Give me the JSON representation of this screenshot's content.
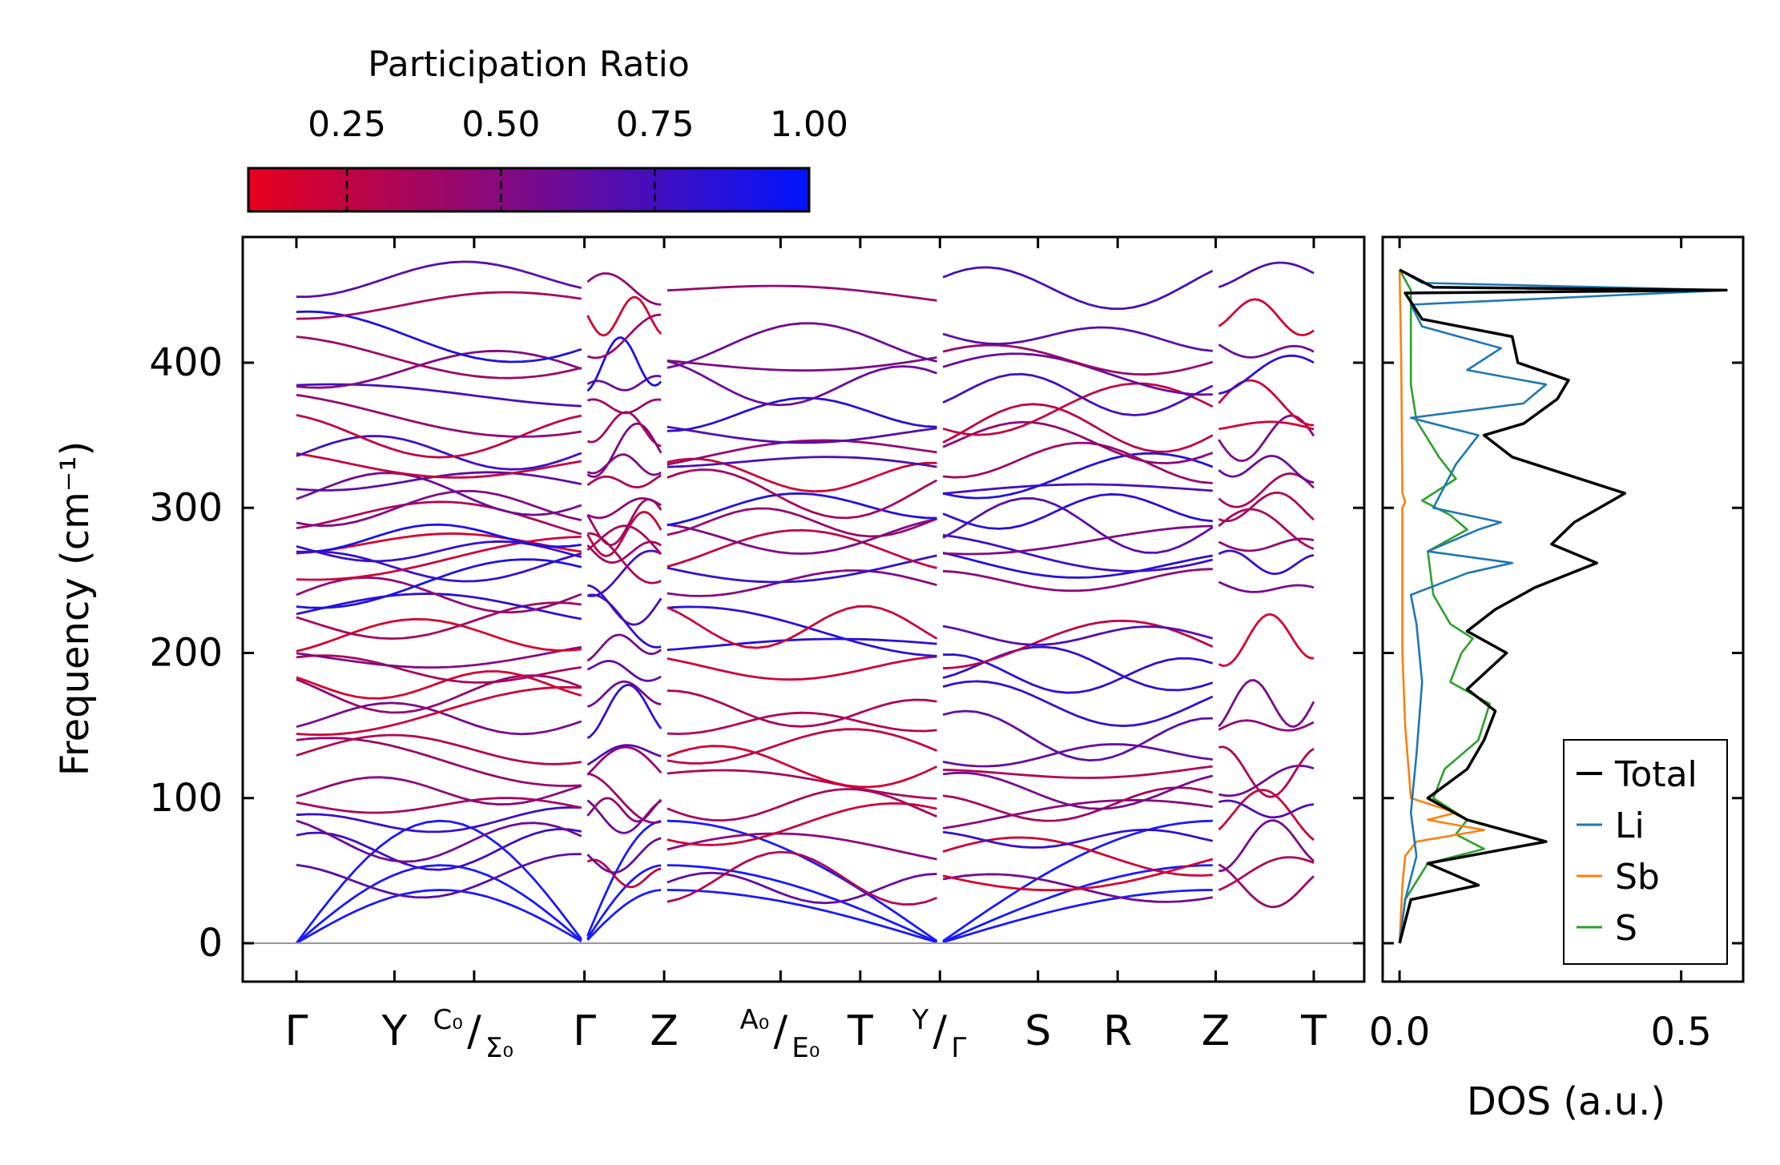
{
  "colorbar": {
    "title": "Participation Ratio",
    "ticks": [
      0.25,
      0.5,
      0.75,
      1.0
    ],
    "tick_labels": [
      "0.25",
      "0.50",
      "0.75",
      "1.00"
    ],
    "range": [
      0.09,
      1.0
    ],
    "colors": {
      "low": "#e8001c",
      "mid": "#7a0a8a",
      "high": "#0014ff"
    }
  },
  "chart_data": [
    {
      "type": "line",
      "name": "phonon-band-structure",
      "title": "",
      "xlabel": "",
      "ylabel": "Frequency (cm⁻¹)",
      "ylim": [
        -25,
        490
      ],
      "yticks": [
        0,
        100,
        200,
        300,
        400
      ],
      "ytick_labels": [
        "0",
        "100",
        "200",
        "300",
        "400"
      ],
      "color_by": "Participation Ratio",
      "path_labels": [
        {
          "main": "Γ",
          "x": 0.0
        },
        {
          "main": "Y",
          "x": 0.8
        },
        {
          "main": "",
          "sup": "C₀",
          "sub": "Σ₀",
          "x": 1.45
        },
        {
          "main": "Γ",
          "x": 2.35
        },
        {
          "main": "Z",
          "x": 3.0
        },
        {
          "main": "",
          "sup": "A₀",
          "sub": "E₀",
          "x": 3.95
        },
        {
          "main": "T",
          "x": 4.6
        },
        {
          "main": "",
          "sup": "Y",
          "sub": "Γ",
          "x": 5.25
        },
        {
          "main": "S",
          "x": 6.05
        },
        {
          "main": "R",
          "x": 6.7
        },
        {
          "main": "Z",
          "x": 7.5
        },
        {
          "main": "T",
          "x": 8.3
        }
      ],
      "vertical_tick_positions": [
        0.8,
        1.45,
        3.95,
        6.05,
        6.7
      ],
      "segments": [
        [
          0.0,
          2.35
        ],
        [
          2.35,
          3.0
        ],
        [
          3.0,
          5.25
        ],
        [
          5.25,
          7.5
        ],
        [
          7.5,
          8.3
        ]
      ],
      "acoustic_zero_points": [
        0.0,
        2.35,
        5.25
      ],
      "segment_optical_frequencies": [
        [
          45,
          64,
          70,
          84,
          95,
          105,
          125,
          133,
          155,
          160,
          172,
          178,
          188,
          198,
          212,
          222,
          230,
          240,
          248,
          260,
          265,
          270,
          275,
          280,
          292,
          300,
          310,
          318,
          330,
          338,
          350,
          365,
          378,
          395,
          405,
          418,
          440,
          458
        ],
        [
          47,
          60,
          88,
          92,
          100,
          118,
          130,
          160,
          172,
          188,
          205,
          222,
          234,
          255,
          265,
          270,
          275,
          282,
          290,
          300,
          318,
          330,
          340,
          355,
          370,
          385,
          400,
          418,
          432,
          450
        ],
        [
          38,
          45,
          62,
          82,
          95,
          110,
          122,
          135,
          152,
          160,
          190,
          205,
          215,
          218,
          248,
          262,
          270,
          280,
          290,
          300,
          310,
          322,
          330,
          338,
          352,
          365,
          385,
          402,
          412,
          448
        ],
        [
          38,
          52,
          60,
          72,
          88,
          95,
          105,
          118,
          130,
          142,
          165,
          185,
          190,
          205,
          212,
          250,
          262,
          270,
          278,
          288,
          298,
          312,
          322,
          332,
          345,
          355,
          368,
          378,
          392,
          402,
          418,
          452
        ],
        [
          40,
          48,
          68,
          88,
          92,
          112,
          118,
          150,
          165,
          210,
          245,
          262,
          275,
          285,
          300,
          312,
          328,
          348,
          355,
          372,
          392,
          408,
          432,
          460
        ]
      ]
    },
    {
      "type": "line",
      "name": "phonon-dos",
      "title": "",
      "xlabel": "DOS (a.u.)",
      "ylabel": "",
      "xlim": [
        -0.03,
        0.61
      ],
      "xticks": [
        0.0,
        0.5
      ],
      "xtick_labels": [
        "0.0",
        "0.5"
      ],
      "ylim": [
        -25,
        490
      ],
      "legend_position": "lower-right",
      "series": [
        {
          "name": "Total",
          "color": "#000000",
          "points": [
            [
              0,
              0
            ],
            [
              0.02,
              30
            ],
            [
              0.14,
              40
            ],
            [
              0.05,
              55
            ],
            [
              0.26,
              70
            ],
            [
              0.12,
              85
            ],
            [
              0.05,
              100
            ],
            [
              0.12,
              120
            ],
            [
              0.15,
              140
            ],
            [
              0.17,
              160
            ],
            [
              0.12,
              175
            ],
            [
              0.19,
              200
            ],
            [
              0.12,
              215
            ],
            [
              0.17,
              230
            ],
            [
              0.24,
              245
            ],
            [
              0.35,
              262
            ],
            [
              0.27,
              275
            ],
            [
              0.31,
              290
            ],
            [
              0.4,
              310
            ],
            [
              0.2,
              335
            ],
            [
              0.15,
              350
            ],
            [
              0.22,
              358
            ],
            [
              0.28,
              375
            ],
            [
              0.3,
              388
            ],
            [
              0.21,
              400
            ],
            [
              0.2,
              418
            ],
            [
              0.04,
              430
            ],
            [
              0.01,
              448
            ],
            [
              0.58,
              450
            ],
            [
              0.06,
              452
            ],
            [
              0.02,
              460
            ],
            [
              0,
              464
            ]
          ]
        },
        {
          "name": "Li",
          "color": "#1f77b4",
          "points": [
            [
              0,
              0
            ],
            [
              0.01,
              30
            ],
            [
              0.03,
              60
            ],
            [
              0.02,
              90
            ],
            [
              0.03,
              130
            ],
            [
              0.04,
              180
            ],
            [
              0.03,
              220
            ],
            [
              0.02,
              240
            ],
            [
              0.12,
              255
            ],
            [
              0.2,
              262
            ],
            [
              0.05,
              270
            ],
            [
              0.14,
              285
            ],
            [
              0.18,
              290
            ],
            [
              0.06,
              300
            ],
            [
              0.1,
              330
            ],
            [
              0.14,
              350
            ],
            [
              0.02,
              362
            ],
            [
              0.22,
              372
            ],
            [
              0.26,
              385
            ],
            [
              0.12,
              395
            ],
            [
              0.18,
              410
            ],
            [
              0.04,
              425
            ],
            [
              0.02,
              440
            ],
            [
              0.58,
              450
            ],
            [
              0.04,
              455
            ],
            [
              0,
              464
            ]
          ]
        },
        {
          "name": "Sb",
          "color": "#ff7f0e",
          "points": [
            [
              0,
              0
            ],
            [
              0.005,
              40
            ],
            [
              0.01,
              60
            ],
            [
              0.03,
              70
            ],
            [
              0.15,
              78
            ],
            [
              0.05,
              85
            ],
            [
              0.1,
              90
            ],
            [
              0.02,
              100
            ],
            [
              0.01,
              150
            ],
            [
              0.005,
              200
            ],
            [
              0.005,
              300
            ],
            [
              0.01,
              304
            ],
            [
              0.005,
              310
            ],
            [
              0.003,
              400
            ],
            [
              0,
              464
            ]
          ]
        },
        {
          "name": "S",
          "color": "#2ca02c",
          "points": [
            [
              0,
              0
            ],
            [
              0.01,
              30
            ],
            [
              0.05,
              55
            ],
            [
              0.15,
              65
            ],
            [
              0.1,
              75
            ],
            [
              0.12,
              85
            ],
            [
              0.06,
              100
            ],
            [
              0.08,
              120
            ],
            [
              0.14,
              140
            ],
            [
              0.16,
              165
            ],
            [
              0.09,
              180
            ],
            [
              0.11,
              200
            ],
            [
              0.13,
              210
            ],
            [
              0.09,
              220
            ],
            [
              0.06,
              240
            ],
            [
              0.05,
              270
            ],
            [
              0.12,
              285
            ],
            [
              0.09,
              295
            ],
            [
              0.04,
              305
            ],
            [
              0.1,
              320
            ],
            [
              0.07,
              335
            ],
            [
              0.03,
              360
            ],
            [
              0.02,
              385
            ],
            [
              0.02,
              420
            ],
            [
              0.02,
              450
            ],
            [
              0,
              464
            ]
          ]
        }
      ]
    }
  ]
}
